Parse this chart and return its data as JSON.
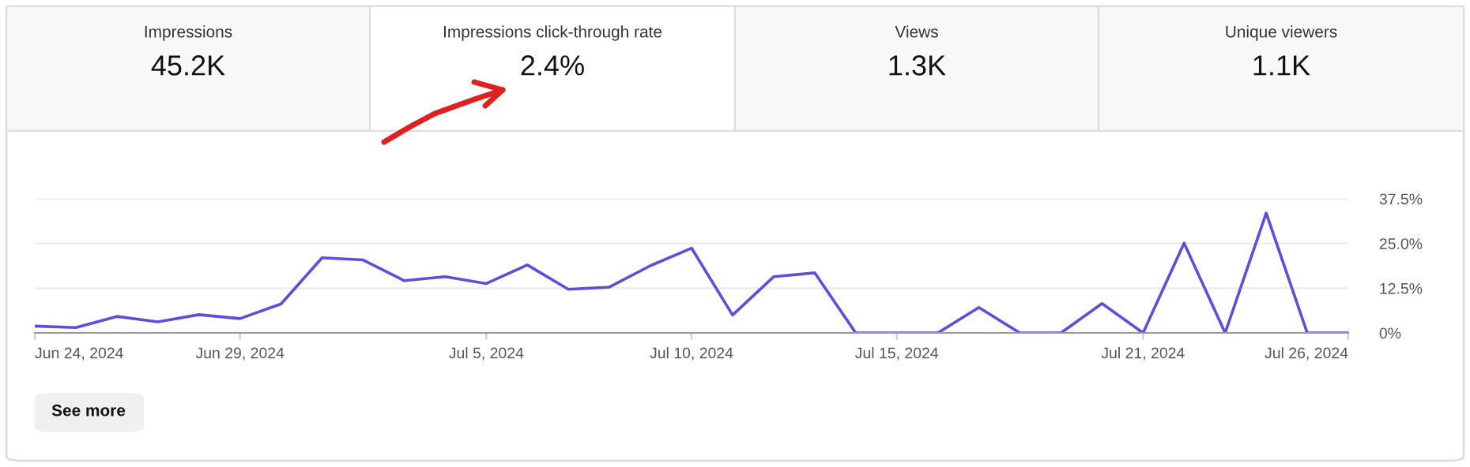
{
  "chart_data": {
    "type": "line",
    "annotations": [
      "Impressions",
      "45.2K",
      "Impressions click-through rate",
      "2.4%",
      "Views",
      "1.3K",
      "Unique viewers",
      "1.1K",
      "See more"
    ],
    "x": [
      "2024-06-24",
      "2024-06-25",
      "2024-06-26",
      "2024-06-27",
      "2024-06-28",
      "2024-06-29",
      "2024-06-30",
      "2024-07-01",
      "2024-07-02",
      "2024-07-03",
      "2024-07-04",
      "2024-07-05",
      "2024-07-06",
      "2024-07-07",
      "2024-07-08",
      "2024-07-09",
      "2024-07-10",
      "2024-07-11",
      "2024-07-12",
      "2024-07-13",
      "2024-07-14",
      "2024-07-15",
      "2024-07-16",
      "2024-07-17",
      "2024-07-18",
      "2024-07-19",
      "2024-07-20",
      "2024-07-21",
      "2024-07-22",
      "2024-07-23",
      "2024-07-24",
      "2024-07-25",
      "2024-07-26"
    ],
    "series": [
      {
        "color": "#5b4fdb",
        "values": [
          1.9,
          1.5,
          4.6,
          3.1,
          5.1,
          4.0,
          8.1,
          21.0,
          20.4,
          14.6,
          15.7,
          13.8,
          19.0,
          12.2,
          12.8,
          18.8,
          23.7,
          5.0,
          15.7,
          16.8,
          0,
          0,
          0,
          7.1,
          0,
          0,
          8.2,
          0,
          25.1,
          0,
          33.5,
          0,
          0
        ]
      }
    ],
    "xlim": [
      "2024-06-24",
      "2024-07-26"
    ],
    "xticks": [
      {
        "value": "2024-06-24",
        "label": "Jun 24, 2024"
      },
      {
        "value": "2024-06-29",
        "label": "Jun 29, 2024"
      },
      {
        "value": "2024-07-05",
        "label": "Jul 5, 2024"
      },
      {
        "value": "2024-07-10",
        "label": "Jul 10, 2024"
      },
      {
        "value": "2024-07-15",
        "label": "Jul 15, 2024"
      },
      {
        "value": "2024-07-21",
        "label": "Jul 21, 2024"
      },
      {
        "value": "2024-07-26",
        "label": "Jul 26, 2024"
      }
    ],
    "ylim": [
      0,
      37.5
    ],
    "yticks": [
      {
        "value": 0,
        "label": "0%"
      },
      {
        "value": 12.5,
        "label": "12.5%"
      },
      {
        "value": 25,
        "label": "25.0%"
      },
      {
        "value": 37.5,
        "label": "37.5%"
      }
    ],
    "grid": "y",
    "line_style": "solid",
    "marker": "none"
  }
}
